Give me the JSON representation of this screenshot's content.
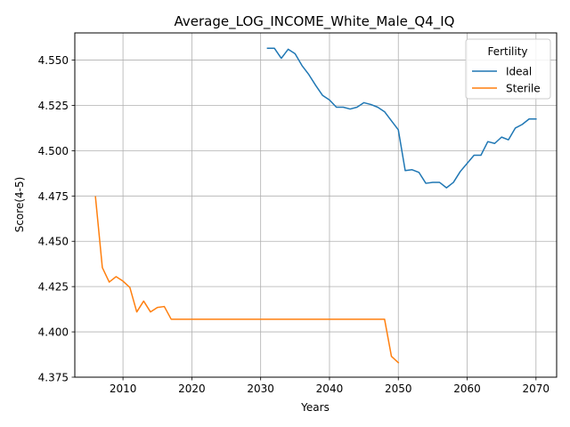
{
  "chart_data": {
    "type": "line",
    "title": "Average_LOG_INCOME_White_Male_Q4_IQ",
    "xlabel": "Years",
    "ylabel": "Score(4-5)",
    "xlim": [
      2003,
      2073
    ],
    "ylim": [
      4.375,
      4.565
    ],
    "xticks": [
      2010,
      2020,
      2030,
      2040,
      2050,
      2060,
      2070
    ],
    "yticks": [
      4.375,
      4.4,
      4.425,
      4.45,
      4.475,
      4.5,
      4.525,
      4.55
    ],
    "ytick_labels": [
      "4.375",
      "4.400",
      "4.425",
      "4.450",
      "4.475",
      "4.500",
      "4.525",
      "4.550"
    ],
    "grid": true,
    "legend": {
      "title": "Fertility",
      "position": "top-right"
    },
    "series": [
      {
        "name": "Ideal",
        "color": "#1f77b4",
        "x": [
          2031,
          2032,
          2033,
          2034,
          2035,
          2036,
          2037,
          2038,
          2039,
          2040,
          2041,
          2042,
          2043,
          2044,
          2045,
          2046,
          2047,
          2048,
          2049,
          2050,
          2051,
          2052,
          2053,
          2054,
          2055,
          2056,
          2057,
          2058,
          2059,
          2060,
          2061,
          2062,
          2063,
          2064,
          2065,
          2066,
          2067,
          2068,
          2069,
          2070
        ],
        "y": [
          4.5565,
          4.5565,
          4.551,
          4.556,
          4.5535,
          4.547,
          4.542,
          4.536,
          4.5305,
          4.528,
          4.524,
          4.524,
          4.523,
          4.524,
          4.5265,
          4.5255,
          4.524,
          4.5215,
          4.5165,
          4.5115,
          4.489,
          4.4895,
          4.488,
          4.482,
          4.4825,
          4.4825,
          4.4795,
          4.4825,
          4.4885,
          4.493,
          4.4975,
          4.4975,
          4.505,
          4.504,
          4.5075,
          4.506,
          4.5125,
          4.5145,
          4.5175,
          4.5175
        ]
      },
      {
        "name": "Sterile",
        "color": "#ff7f0e",
        "x": [
          2006,
          2007,
          2008,
          2009,
          2010,
          2011,
          2012,
          2013,
          2014,
          2015,
          2016,
          2017,
          2018,
          2019,
          2020,
          2021,
          2022,
          2023,
          2024,
          2025,
          2026,
          2027,
          2028,
          2029,
          2030,
          2031,
          2032,
          2033,
          2034,
          2035,
          2036,
          2037,
          2038,
          2039,
          2040,
          2041,
          2042,
          2043,
          2044,
          2045,
          2046,
          2047,
          2048,
          2049,
          2050
        ],
        "y": [
          4.4745,
          4.4355,
          4.4275,
          4.4305,
          4.428,
          4.4245,
          4.411,
          4.417,
          4.411,
          4.4135,
          4.414,
          4.407,
          4.407,
          4.407,
          4.407,
          4.407,
          4.407,
          4.407,
          4.407,
          4.407,
          4.407,
          4.407,
          4.407,
          4.407,
          4.407,
          4.407,
          4.407,
          4.407,
          4.407,
          4.407,
          4.407,
          4.407,
          4.407,
          4.407,
          4.407,
          4.407,
          4.407,
          4.407,
          4.407,
          4.407,
          4.407,
          4.407,
          4.407,
          4.3865,
          4.383
        ]
      }
    ]
  }
}
